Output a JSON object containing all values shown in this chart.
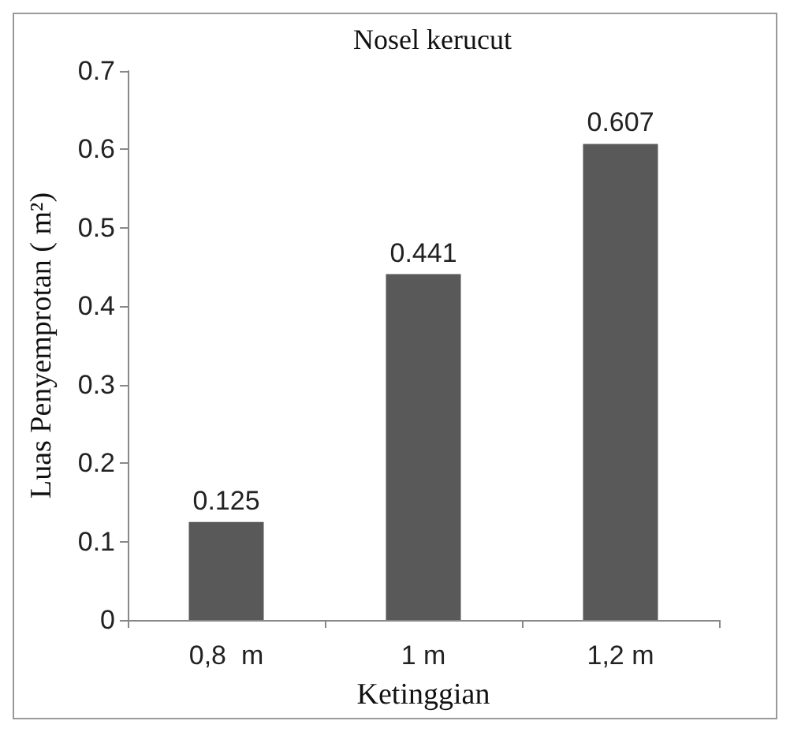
{
  "chart_data": {
    "type": "bar",
    "title": "Nosel kerucut",
    "xlabel": "Ketinggian",
    "ylabel": "Luas Penyemprotan ( m²)",
    "categories": [
      "0,8  m",
      "1 m",
      "1,2 m"
    ],
    "values": [
      0.125,
      0.441,
      0.607
    ],
    "color": "#595959",
    "ylim": [
      0,
      0.7
    ],
    "yticks": [
      0,
      0.1,
      0.2,
      0.3,
      0.4,
      0.5,
      0.6,
      0.7
    ],
    "grid": false,
    "data_labels": true
  }
}
